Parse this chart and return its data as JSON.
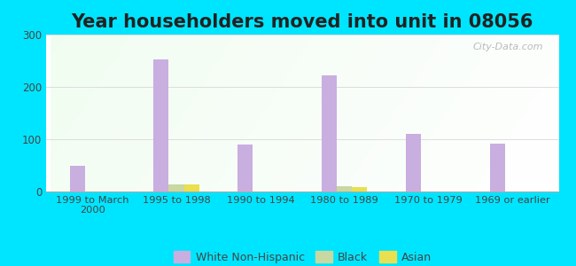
{
  "title": "Year householders moved into unit in 08056",
  "categories": [
    "1999 to March\n2000",
    "1995 to 1998",
    "1990 to 1994",
    "1980 to 1989",
    "1970 to 1979",
    "1969 or earlier"
  ],
  "white_non_hispanic": [
    50,
    252,
    90,
    222,
    110,
    92
  ],
  "black": [
    0,
    13,
    0,
    10,
    0,
    0
  ],
  "asian": [
    0,
    14,
    0,
    8,
    0,
    0
  ],
  "bar_colors": {
    "white": "#c9aee0",
    "black": "#c8d8a0",
    "asian": "#e8e050"
  },
  "ylim": [
    0,
    300
  ],
  "yticks": [
    0,
    100,
    200,
    300
  ],
  "background_outer": "#00e5ff",
  "watermark": "City-Data.com",
  "bar_width": 0.18,
  "title_fontsize": 15,
  "grid_color": "#dddddd"
}
